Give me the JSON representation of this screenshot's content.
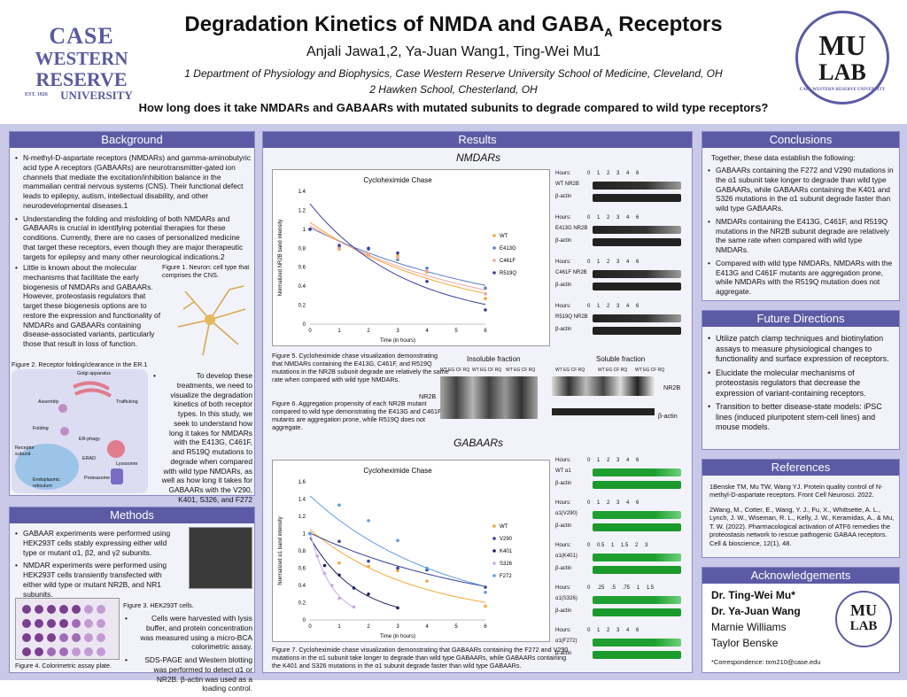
{
  "header": {
    "title_main": "Degradation Kinetics of NMDA and GABA",
    "title_sub": "A",
    "title_end": " Receptors",
    "authors": "Anjali Jawa1,2, Ya-Juan Wang1, Ting-Wei Mu1",
    "affil1": "1 Department of Physiology and Biophysics, Case Western Reserve University School of Medicine, Cleveland, OH",
    "affil2": "2 Hawken School, Chesterland, OH",
    "question": "How long does it take NMDARs and GABAARs with mutated subunits to degrade compared to wild type receptors?"
  },
  "cwru": {
    "l1": "CASE",
    "l2": "WESTERN",
    "l3": "RESERVE",
    "l4": "EST. 1826",
    "l5": "UNIVERSITY"
  },
  "mulab": {
    "l1": "MU",
    "l2": "LAB",
    "ring": "CASE WESTERN RESERVE UNIVERSITY"
  },
  "background": {
    "title": "Background",
    "b1": "N-methyl-D-aspartate receptors (NMDARs) and gamma-aminobutyric acid type A receptors (GABAARs) are neurotransmitter-gated ion channels that mediate the excitation/inhibition balance in the mammalian central nervous systems (CNS). Their functional defect leads to epilepsy, autism, intellectual disability, and other neurodevelopmental diseases.1",
    "b2": "Understanding the folding and misfolding of both NMDARs and GABAARs is crucial in identifying potential therapies for these conditions. Currently, there are no cases of personalized medicine that target these receptors, even though they are major therapeutic targets for epilepsy and many other neurological indications.2",
    "b3": "Little is known about the molecular mechanisms that facilitate the early biogenesis of NMDARs and GABAARs. However, proteostasis regulators that target these biogenesis options are to restore the expression and functionality of NMDARs and GABAARs containing disease-associated variants, particularly those that result in loss of function.",
    "fig1": "Figure 1. Neuron: cell type that comprises the CNS.",
    "fig2": "Figure 2. Receptor folding/clearance in the ER.1",
    "b4": "To develop these treatments, we need to visualize the degradation kinetics of both receptor types. In this study, we seek to understand how long it takes for NMDARs with the E413G, C461F, and R519Q mutations to degrade when compared with wild type NMDARs, as well as how long it takes for GABAARs with the V290, K401, S326, and F272 mutations when compared with wild type GABAARs.",
    "er_labels": [
      "Golgi apparatus",
      "Trafficking",
      "Assembly",
      "Folding",
      "ER-phagy",
      "Lysosome",
      "Receptor subunit",
      "ERAD",
      "Proteasome",
      "Endoplasmic reticulum"
    ]
  },
  "methods": {
    "title": "Methods",
    "b1": "GABAAR experiments were performed using HEK293T cells stably expressing either wild type or mutant α1, β2, and γ2 subunits.",
    "b2": "NMDAR experiments were performed using HEK293T cells transiently transfected with either wild type or mutant NR2B, and NR1 subunits.",
    "fig3": "Figure 3. HEK293T cells.",
    "b3": "Cells were harvested with lysis buffer, and protein concentration was measured using a micro-BCA colorimetric assay.",
    "b4": "SDS-PAGE and Western blotting was performed to detect α1 or NR2B. β-actin was used as a loading control.",
    "fig4": "Figure 4. Colorimetric assay plate."
  },
  "results": {
    "title": "Results",
    "nmdar_head": "NMDARs",
    "gaba_head": "GABAARs",
    "fig5": "Figure 5. Cycloheximide chase visualization demonstrating that NMDARs containing the E413G, C461F, and R519Q mutations in the NR2B subunit degrade are relatively the same rate when compared with wild type NMDARs.",
    "fig6": "Figure 6. Aggregation propensity of each NR2B mutant compared to wild type demonstrating the E413G and C461F mutants are aggregation prone, while R519Q does not aggregate.",
    "fig7": "Figure 7. Cycloheximide chase visualization demonstrating that GABAARs containing the F272 and V290 mutations in the α1 subunit take longer to degrade than wild type GABAARs, while GABAARs containing the K401 and S326 mutations in the α1 subunit degrade faster than wild type GABAARs.",
    "insoluble": "Insoluble fraction",
    "soluble": "Soluble fraction",
    "lane_labels": "WT EG CF RQ",
    "nr2b": "NR2B",
    "bactin": "β-actin",
    "blots_n": [
      {
        "hours": "Hours:",
        "ticks": "0 1 2 3 4 6",
        "l1": "WT NR2B",
        "l2": "β-actin"
      },
      {
        "hours": "Hours:",
        "ticks": "0 1 2 3 4 6",
        "l1": "E413G NR2B",
        "l2": "β-actin"
      },
      {
        "hours": "Hours:",
        "ticks": "0 1 2 3 4 6",
        "l1": "C461F NR2B",
        "l2": "β-actin"
      },
      {
        "hours": "Hours:",
        "ticks": "0 1 2 3 4 6",
        "l1": "R519Q NR2B",
        "l2": "β-actin"
      }
    ],
    "blots_g": [
      {
        "hours": "Hours:",
        "ticks": "0 1 2 3 4 6",
        "l1": "WT α1",
        "l2": "β-actin"
      },
      {
        "hours": "Hours:",
        "ticks": "0 1 2 3 4 6",
        "l1": "α1(V290)",
        "l2": "β-actin"
      },
      {
        "hours": "Hours:",
        "ticks": "0 0.5 1 1.5 2 3",
        "l1": "α1(K401)",
        "l2": "β-actin"
      },
      {
        "hours": "Hours:",
        "ticks": "0 .25 .5 .75 1 1.5",
        "l1": "α1(S326)",
        "l2": "β-actin"
      },
      {
        "hours": "Hours:",
        "ticks": "0 1 2 3 4 6",
        "l1": "α1(F272)",
        "l2": "β-actin"
      }
    ]
  },
  "conclusions": {
    "title": "Conclusions",
    "intro": "Together, these data establish the following:",
    "b1": "GABAARs containing the F272 and V290 mutations in the α1 subunit take longer to degrade than wild type GABAARs, while GABAARs containing the K401 and S326 mutations in the α1 subunit degrade faster than wild type GABAARs.",
    "b2": "NMDARs containing the E413G, C461F, and R519Q mutations in the NR2B subunit degrade are relatively the same rate when compared with wild type NMDARs.",
    "b3": "Compared with wild type NMDARs, NMDARs with the E413G and C461F mutants are aggregation prone, while NMDARs with the R519Q mutation does not aggregate."
  },
  "future": {
    "title": "Future Directions",
    "b1": "Utilize patch clamp techniques and biotinylation assays to measure physiological changes to functionality and surface expression of receptors.",
    "b2": "Elucidate the molecular mechanisms of proteostasis regulators that decrease the expression of variant-containing receptors.",
    "b3": "Transition to better disease-state models: iPSC lines (induced pluripotent stem-cell lines) and mouse models."
  },
  "references": {
    "title": "References",
    "r1": "1Benske TM, Mu TW, Wang YJ. Protein quality control of N-methyl-D-aspartate receptors. Front Cell Neurosci. 2022.",
    "r2": "2Wang, M., Cotter, E., Wang, Y. J., Fu, X., Whittsette, A. L., Lynch, J. W., Wiseman, R. L., Kelly, J. W., Keramidas, A., & Mu, T. W. (2022). Pharmacological activation of ATF6 remedies the proteostasis network to rescue pathogenic GABAA receptors. Cell & bioscience, 12(1), 48."
  },
  "ack": {
    "title": "Acknowledgements",
    "n1": "Dr. Ting-Wei Mu*",
    "n2": "Dr. Ya-Juan Wang",
    "n3": "Marnie Williams",
    "n4": "Taylor Benske",
    "corr": "*Correspondence: txm210@case.edu"
  },
  "colors": {
    "accent": "#5b5ba5",
    "bg": "#c9c8e8",
    "wt": "#f5a638",
    "e413g": "#5b7fc6",
    "c461f": "#f0a6a0",
    "r519q": "#3a3f9e",
    "v290": "#3a3f9e",
    "k401": "#1e2260",
    "s326": "#c9a7e8",
    "f272": "#5a9ee0"
  },
  "chart_data": [
    {
      "type": "scatter",
      "title": "Cycloheximide Chase",
      "xlabel": "Time (in hours)",
      "ylabel": "Normalized NR2B band intensity",
      "xlim": [
        0,
        6
      ],
      "ylim": [
        0,
        1.4
      ],
      "xticks": [
        0,
        1,
        2,
        3,
        4,
        5,
        6
      ],
      "yticks": [
        0,
        0.2,
        0.4,
        0.6,
        0.8,
        1,
        1.2,
        1.4
      ],
      "series": [
        {
          "name": "WT",
          "color": "#f5a638",
          "x": [
            0,
            1,
            2,
            3,
            4,
            6
          ],
          "y": [
            1,
            0.79,
            0.73,
            0.72,
            0.55,
            0.27
          ]
        },
        {
          "name": "E413G",
          "color": "#5b7fc6",
          "x": [
            0,
            1,
            2,
            3,
            4,
            6
          ],
          "y": [
            1,
            0.81,
            0.79,
            0.68,
            0.59,
            0.38
          ]
        },
        {
          "name": "C461F",
          "color": "#f0a6a0",
          "x": [
            0,
            1,
            2,
            3,
            4,
            6
          ],
          "y": [
            1,
            0.8,
            0.74,
            0.7,
            0.56,
            0.32
          ]
        },
        {
          "name": "R519Q",
          "color": "#3a3f9e",
          "x": [
            0,
            1,
            2,
            3,
            4,
            6
          ],
          "y": [
            1,
            0.83,
            0.8,
            0.75,
            0.45,
            0.15
          ]
        }
      ]
    },
    {
      "type": "scatter",
      "title": "Cycloheximide Chase",
      "xlabel": "Time (in hours)",
      "ylabel": "Normalized α1 band intensity",
      "xlim": [
        0,
        6
      ],
      "ylim": [
        0,
        1.6
      ],
      "xticks": [
        0,
        1,
        2,
        3,
        4,
        5,
        6
      ],
      "yticks": [
        0,
        0.2,
        0.4,
        0.6,
        0.8,
        1,
        1.2,
        1.4,
        1.6
      ],
      "series": [
        {
          "name": "WT",
          "color": "#f5a638",
          "x": [
            0,
            1,
            2,
            3,
            4,
            6
          ],
          "y": [
            1,
            0.66,
            0.62,
            0.57,
            0.45,
            0.16
          ]
        },
        {
          "name": "V290",
          "color": "#3a3f9e",
          "x": [
            0,
            1,
            2,
            3,
            4,
            6
          ],
          "y": [
            1,
            0.91,
            0.68,
            0.6,
            0.58,
            0.38
          ]
        },
        {
          "name": "K401",
          "color": "#1e2260",
          "x": [
            0,
            0.5,
            1,
            1.5,
            2,
            3
          ],
          "y": [
            1,
            0.63,
            0.52,
            0.37,
            0.3,
            0.14
          ]
        },
        {
          "name": "S326",
          "color": "#c9a7e8",
          "x": [
            0,
            0.25,
            0.5,
            0.75,
            1,
            1.5
          ],
          "y": [
            1,
            0.74,
            0.54,
            0.4,
            0.25,
            0.15
          ]
        },
        {
          "name": "F272",
          "color": "#5a9ee0",
          "x": [
            0,
            1,
            2,
            3,
            4,
            6
          ],
          "y": [
            1,
            1.33,
            1.15,
            0.92,
            0.6,
            0.32
          ]
        }
      ]
    }
  ]
}
